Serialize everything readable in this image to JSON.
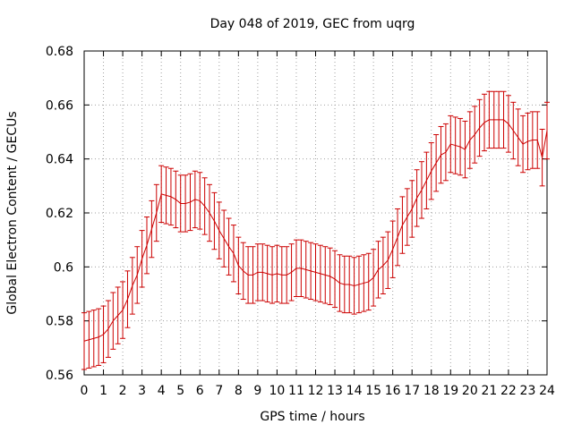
{
  "chart_data": {
    "type": "line",
    "title": "Day 048 of 2019, GEC from uqrg",
    "xlabel": "GPS time / hours",
    "ylabel": "Global Electron Content / GECUs",
    "xlim": [
      0,
      24
    ],
    "ylim": [
      0.56,
      0.68
    ],
    "grid": true,
    "x_ticks": [
      0,
      1,
      2,
      3,
      4,
      5,
      6,
      7,
      8,
      9,
      10,
      11,
      12,
      13,
      14,
      15,
      16,
      17,
      18,
      19,
      20,
      21,
      22,
      23,
      24
    ],
    "x_tick_labels": [
      "0",
      "1",
      "2",
      "3",
      "4",
      "5",
      "6",
      "7",
      "8",
      "9",
      "10",
      "11",
      "12",
      "13",
      "14",
      "15",
      "16",
      "17",
      "18",
      "19",
      "20",
      "21",
      "22",
      "23",
      "24"
    ],
    "y_ticks": [
      0.56,
      0.58,
      0.6,
      0.62,
      0.64,
      0.66,
      0.68
    ],
    "y_tick_labels": [
      "0.56",
      "0.58",
      "0.6",
      "0.62",
      "0.64",
      "0.66",
      "0.68"
    ],
    "series_color": "#cc0000",
    "grid_color": "#a0a0a0",
    "series": [
      {
        "name": "GEC",
        "x": [
          0,
          0.25,
          0.5,
          0.75,
          1,
          1.25,
          1.5,
          1.75,
          2,
          2.25,
          2.5,
          2.75,
          3,
          3.25,
          3.5,
          3.75,
          4,
          4.25,
          4.5,
          4.75,
          5,
          5.25,
          5.5,
          5.75,
          6,
          6.25,
          6.5,
          6.75,
          7,
          7.25,
          7.5,
          7.75,
          8,
          8.25,
          8.5,
          8.75,
          9,
          9.25,
          9.5,
          9.75,
          10,
          10.25,
          10.5,
          10.75,
          11,
          11.25,
          11.5,
          11.75,
          12,
          12.25,
          12.5,
          12.75,
          13,
          13.25,
          13.5,
          13.75,
          14,
          14.25,
          14.5,
          14.75,
          15,
          15.25,
          15.5,
          15.75,
          16,
          16.25,
          16.5,
          16.75,
          17,
          17.25,
          17.5,
          17.75,
          18,
          18.25,
          18.5,
          18.75,
          19,
          19.25,
          19.5,
          19.75,
          20,
          20.25,
          20.5,
          20.75,
          21,
          21.25,
          21.5,
          21.75,
          22,
          22.25,
          22.5,
          22.75,
          23,
          23.25,
          23.5,
          23.75,
          24
        ],
        "y": [
          0.5725,
          0.573,
          0.5735,
          0.574,
          0.575,
          0.577,
          0.58,
          0.582,
          0.584,
          0.588,
          0.593,
          0.597,
          0.603,
          0.608,
          0.614,
          0.62,
          0.627,
          0.6265,
          0.626,
          0.625,
          0.6235,
          0.6235,
          0.624,
          0.625,
          0.6245,
          0.6225,
          0.62,
          0.617,
          0.6135,
          0.6105,
          0.6075,
          0.605,
          0.6005,
          0.5985,
          0.597,
          0.597,
          0.598,
          0.598,
          0.5975,
          0.597,
          0.5975,
          0.597,
          0.597,
          0.598,
          0.5995,
          0.5995,
          0.599,
          0.5985,
          0.598,
          0.5975,
          0.597,
          0.5965,
          0.5955,
          0.594,
          0.5935,
          0.5935,
          0.593,
          0.5935,
          0.594,
          0.5945,
          0.596,
          0.599,
          0.6005,
          0.6025,
          0.6065,
          0.611,
          0.6155,
          0.6185,
          0.6215,
          0.6255,
          0.6285,
          0.632,
          0.6355,
          0.6385,
          0.6415,
          0.6425,
          0.6455,
          0.645,
          0.6445,
          0.6435,
          0.647,
          0.649,
          0.6515,
          0.6535,
          0.6545,
          0.6545,
          0.6545,
          0.6545,
          0.653,
          0.6505,
          0.648,
          0.6455,
          0.6465,
          0.647,
          0.647,
          0.6405,
          0.6505
        ],
        "error": [
          0.0105,
          0.0105,
          0.0105,
          0.0105,
          0.0105,
          0.0105,
          0.0105,
          0.0105,
          0.0105,
          0.0105,
          0.0105,
          0.0105,
          0.0105,
          0.0105,
          0.0105,
          0.0105,
          0.0105,
          0.0105,
          0.0105,
          0.0105,
          0.0105,
          0.0105,
          0.0105,
          0.0105,
          0.0105,
          0.0105,
          0.0105,
          0.0105,
          0.0105,
          0.0105,
          0.0105,
          0.0105,
          0.0105,
          0.0105,
          0.0105,
          0.0105,
          0.0105,
          0.0105,
          0.0105,
          0.0105,
          0.0105,
          0.0105,
          0.0105,
          0.0105,
          0.0105,
          0.0105,
          0.0105,
          0.0105,
          0.0105,
          0.0105,
          0.0105,
          0.0105,
          0.0105,
          0.0105,
          0.0105,
          0.0105,
          0.0105,
          0.0105,
          0.0105,
          0.0105,
          0.0105,
          0.0105,
          0.0105,
          0.0105,
          0.0105,
          0.0105,
          0.0105,
          0.0105,
          0.0105,
          0.0105,
          0.0105,
          0.0105,
          0.0105,
          0.0105,
          0.0105,
          0.0105,
          0.0105,
          0.0105,
          0.0105,
          0.0105,
          0.0105,
          0.0105,
          0.0105,
          0.0105,
          0.0105,
          0.0105,
          0.0105,
          0.0105,
          0.0105,
          0.0105,
          0.0105,
          0.0105,
          0.0105,
          0.0105,
          0.0105,
          0.0105,
          0.0105
        ]
      }
    ]
  }
}
